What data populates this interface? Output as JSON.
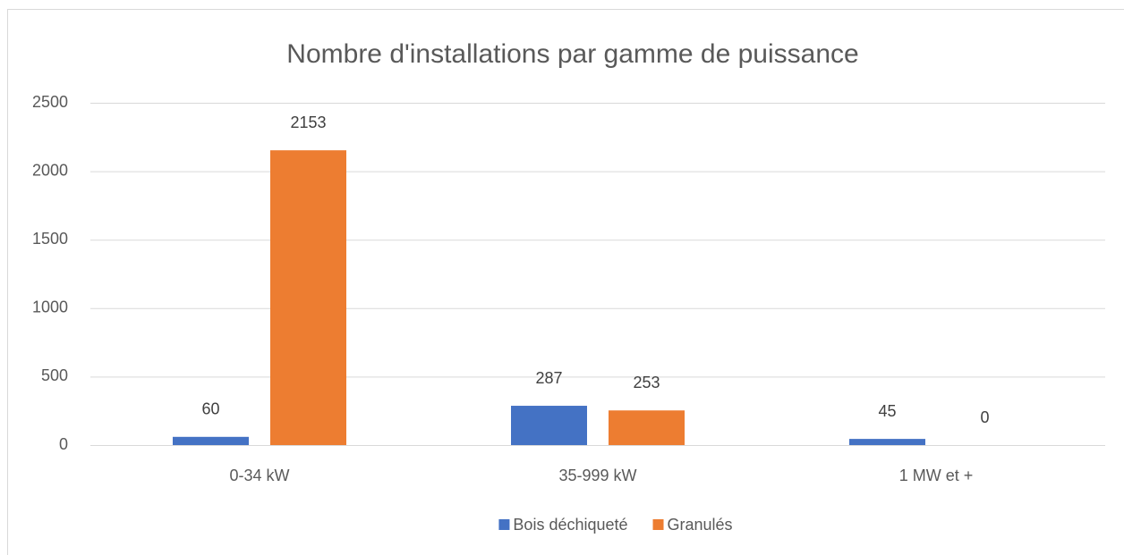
{
  "chart_data": {
    "type": "bar",
    "title": "Nombre d'installations par gamme de puissance",
    "categories": [
      "0-34 kW",
      "35-999 kW",
      "1 MW et +"
    ],
    "series": [
      {
        "name": "Bois déchiqueté",
        "color": "#4472c4",
        "values": [
          60,
          287,
          45
        ]
      },
      {
        "name": "Granulés",
        "color": "#ed7d31",
        "values": [
          2153,
          253,
          0
        ]
      }
    ],
    "ylim": [
      0,
      2500
    ],
    "yticks": [
      0,
      500,
      1000,
      1500,
      2000,
      2500
    ],
    "grid": true,
    "legend": "bottom"
  }
}
